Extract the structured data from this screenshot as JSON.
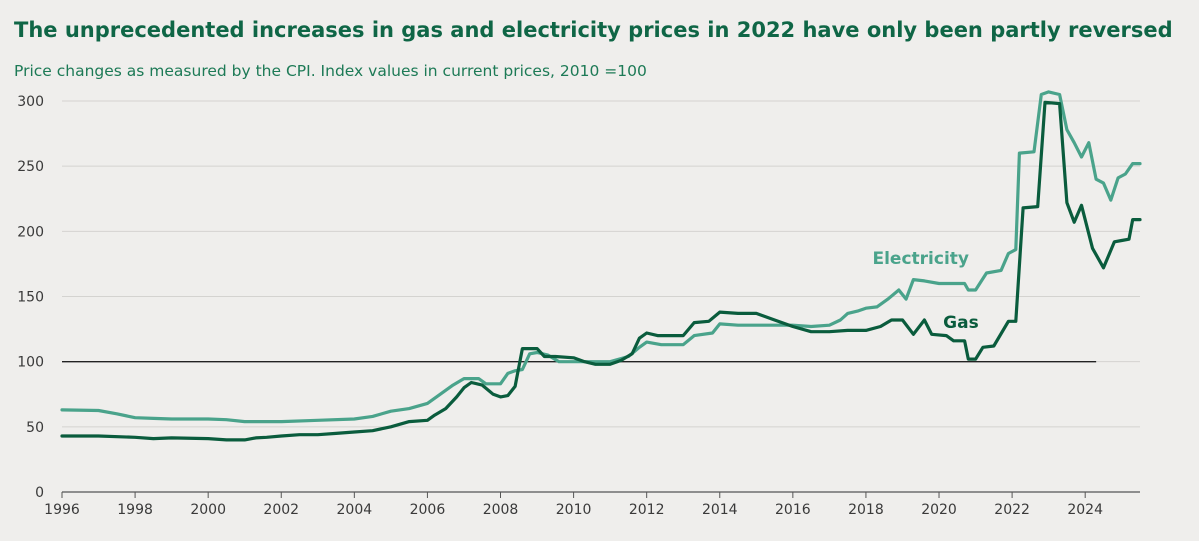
{
  "title": "The unprecedented increases in gas and electricity prices in 2022 have only been partly reversed",
  "subtitle": "Price changes as measured by the CPI. Index values in current prices, 2010 =100",
  "chart_data": {
    "type": "line",
    "title": "The unprecedented increases in gas and electricity prices in 2022 have only been partly reversed",
    "subtitle": "Price changes as measured by the CPI. Index values in current prices, 2010 =100",
    "xlabel": "",
    "ylabel": "",
    "xlim": [
      1996,
      2025.5
    ],
    "ylim": [
      0,
      300
    ],
    "x_ticks": [
      "1996",
      "1998",
      "2000",
      "2002",
      "2004",
      "2006",
      "2008",
      "2010",
      "2012",
      "2014",
      "2016",
      "2018",
      "2020",
      "2022",
      "2024"
    ],
    "y_ticks": [
      "0",
      "50",
      "100",
      "150",
      "200",
      "250",
      "300"
    ],
    "reference_line": {
      "y": 100,
      "x_start": 1996,
      "x_end": 2024.3
    },
    "grid": "horizontal",
    "legend": "inline labels",
    "series": [
      {
        "name": "Electricity",
        "color": "#4aa38b",
        "label_position": [
          2019.5,
          175
        ],
        "points": [
          [
            1996,
            63
          ],
          [
            1997,
            62.5
          ],
          [
            1997.5,
            60
          ],
          [
            1998,
            57
          ],
          [
            1998.5,
            56.5
          ],
          [
            1999,
            56
          ],
          [
            2000,
            56
          ],
          [
            2000.5,
            55.5
          ],
          [
            2001,
            54
          ],
          [
            2002,
            54
          ],
          [
            2003,
            55
          ],
          [
            2004,
            56
          ],
          [
            2004.5,
            58
          ],
          [
            2005,
            62
          ],
          [
            2005.5,
            64
          ],
          [
            2006,
            68
          ],
          [
            2006.3,
            74
          ],
          [
            2006.7,
            82
          ],
          [
            2007,
            87
          ],
          [
            2007.4,
            87
          ],
          [
            2007.6,
            83
          ],
          [
            2008,
            83
          ],
          [
            2008.2,
            91
          ],
          [
            2008.4,
            93
          ],
          [
            2008.6,
            94
          ],
          [
            2008.8,
            106
          ],
          [
            2009,
            107
          ],
          [
            2009.3,
            105
          ],
          [
            2009.6,
            100
          ],
          [
            2010,
            100
          ],
          [
            2011,
            100
          ],
          [
            2011.5,
            104
          ],
          [
            2011.8,
            111
          ],
          [
            2012,
            115
          ],
          [
            2012.4,
            113
          ],
          [
            2013,
            113
          ],
          [
            2013.3,
            120
          ],
          [
            2013.8,
            122
          ],
          [
            2014,
            129
          ],
          [
            2014.5,
            128
          ],
          [
            2015,
            128
          ],
          [
            2016,
            128
          ],
          [
            2016.5,
            127
          ],
          [
            2017,
            128
          ],
          [
            2017.3,
            132
          ],
          [
            2017.5,
            137
          ],
          [
            2017.8,
            139
          ],
          [
            2018,
            141
          ],
          [
            2018.3,
            142
          ],
          [
            2018.6,
            148
          ],
          [
            2018.9,
            155
          ],
          [
            2019.1,
            148
          ],
          [
            2019.3,
            163
          ],
          [
            2019.6,
            162
          ],
          [
            2020,
            160
          ],
          [
            2020.7,
            160
          ],
          [
            2020.8,
            155
          ],
          [
            2021,
            155
          ],
          [
            2021.3,
            168
          ],
          [
            2021.7,
            170
          ],
          [
            2021.9,
            183
          ],
          [
            2022.1,
            186
          ],
          [
            2022.2,
            260
          ],
          [
            2022.6,
            261
          ],
          [
            2022.8,
            305
          ],
          [
            2023,
            307
          ],
          [
            2023.3,
            305
          ],
          [
            2023.5,
            278
          ],
          [
            2023.7,
            268
          ],
          [
            2023.9,
            257
          ],
          [
            2024.1,
            268
          ],
          [
            2024.3,
            240
          ],
          [
            2024.5,
            237
          ],
          [
            2024.7,
            224
          ],
          [
            2024.9,
            241
          ],
          [
            2025.1,
            244
          ],
          [
            2025.3,
            252
          ],
          [
            2025.5,
            252
          ]
        ]
      },
      {
        "name": "Gas",
        "color": "#0a5c3d",
        "label_position": [
          2020.6,
          126
        ],
        "points": [
          [
            1996,
            43
          ],
          [
            1997,
            43
          ],
          [
            1998,
            42
          ],
          [
            1998.5,
            41
          ],
          [
            1999,
            41.5
          ],
          [
            2000,
            41
          ],
          [
            2000.5,
            40
          ],
          [
            2001,
            40
          ],
          [
            2001.3,
            41.5
          ],
          [
            2001.6,
            42
          ],
          [
            2002,
            43
          ],
          [
            2002.5,
            44
          ],
          [
            2003,
            44
          ],
          [
            2003.5,
            45
          ],
          [
            2004,
            46
          ],
          [
            2004.5,
            47
          ],
          [
            2005,
            50
          ],
          [
            2005.5,
            54
          ],
          [
            2006,
            55
          ],
          [
            2006.2,
            59
          ],
          [
            2006.5,
            64
          ],
          [
            2006.8,
            73
          ],
          [
            2007,
            80
          ],
          [
            2007.2,
            84
          ],
          [
            2007.5,
            82
          ],
          [
            2007.8,
            75
          ],
          [
            2008,
            73
          ],
          [
            2008.2,
            74
          ],
          [
            2008.4,
            81
          ],
          [
            2008.6,
            110
          ],
          [
            2009,
            110
          ],
          [
            2009.2,
            104
          ],
          [
            2009.5,
            104
          ],
          [
            2010,
            103
          ],
          [
            2010.3,
            100
          ],
          [
            2010.6,
            98
          ],
          [
            2011,
            98
          ],
          [
            2011.3,
            101
          ],
          [
            2011.6,
            106
          ],
          [
            2011.8,
            118
          ],
          [
            2012,
            122
          ],
          [
            2012.3,
            120
          ],
          [
            2013,
            120
          ],
          [
            2013.3,
            130
          ],
          [
            2013.7,
            131
          ],
          [
            2014,
            138
          ],
          [
            2014.5,
            137
          ],
          [
            2015,
            137
          ],
          [
            2015.5,
            132
          ],
          [
            2016,
            127
          ],
          [
            2016.5,
            123
          ],
          [
            2017,
            123
          ],
          [
            2017.5,
            124
          ],
          [
            2018,
            124
          ],
          [
            2018.4,
            127
          ],
          [
            2018.7,
            132
          ],
          [
            2019,
            132
          ],
          [
            2019.3,
            121
          ],
          [
            2019.6,
            132
          ],
          [
            2019.8,
            121
          ],
          [
            2020.2,
            120
          ],
          [
            2020.4,
            116
          ],
          [
            2020.7,
            116
          ],
          [
            2020.8,
            102
          ],
          [
            2021,
            102
          ],
          [
            2021.2,
            111
          ],
          [
            2021.5,
            112
          ],
          [
            2021.9,
            131
          ],
          [
            2022.1,
            131
          ],
          [
            2022.3,
            218
          ],
          [
            2022.7,
            219
          ],
          [
            2022.9,
            299
          ],
          [
            2023.3,
            298
          ],
          [
            2023.5,
            222
          ],
          [
            2023.7,
            207
          ],
          [
            2023.9,
            220
          ],
          [
            2024.2,
            187
          ],
          [
            2024.5,
            172
          ],
          [
            2024.8,
            192
          ],
          [
            2025,
            193
          ],
          [
            2025.2,
            194
          ],
          [
            2025.3,
            209
          ],
          [
            2025.5,
            209
          ]
        ]
      }
    ]
  }
}
